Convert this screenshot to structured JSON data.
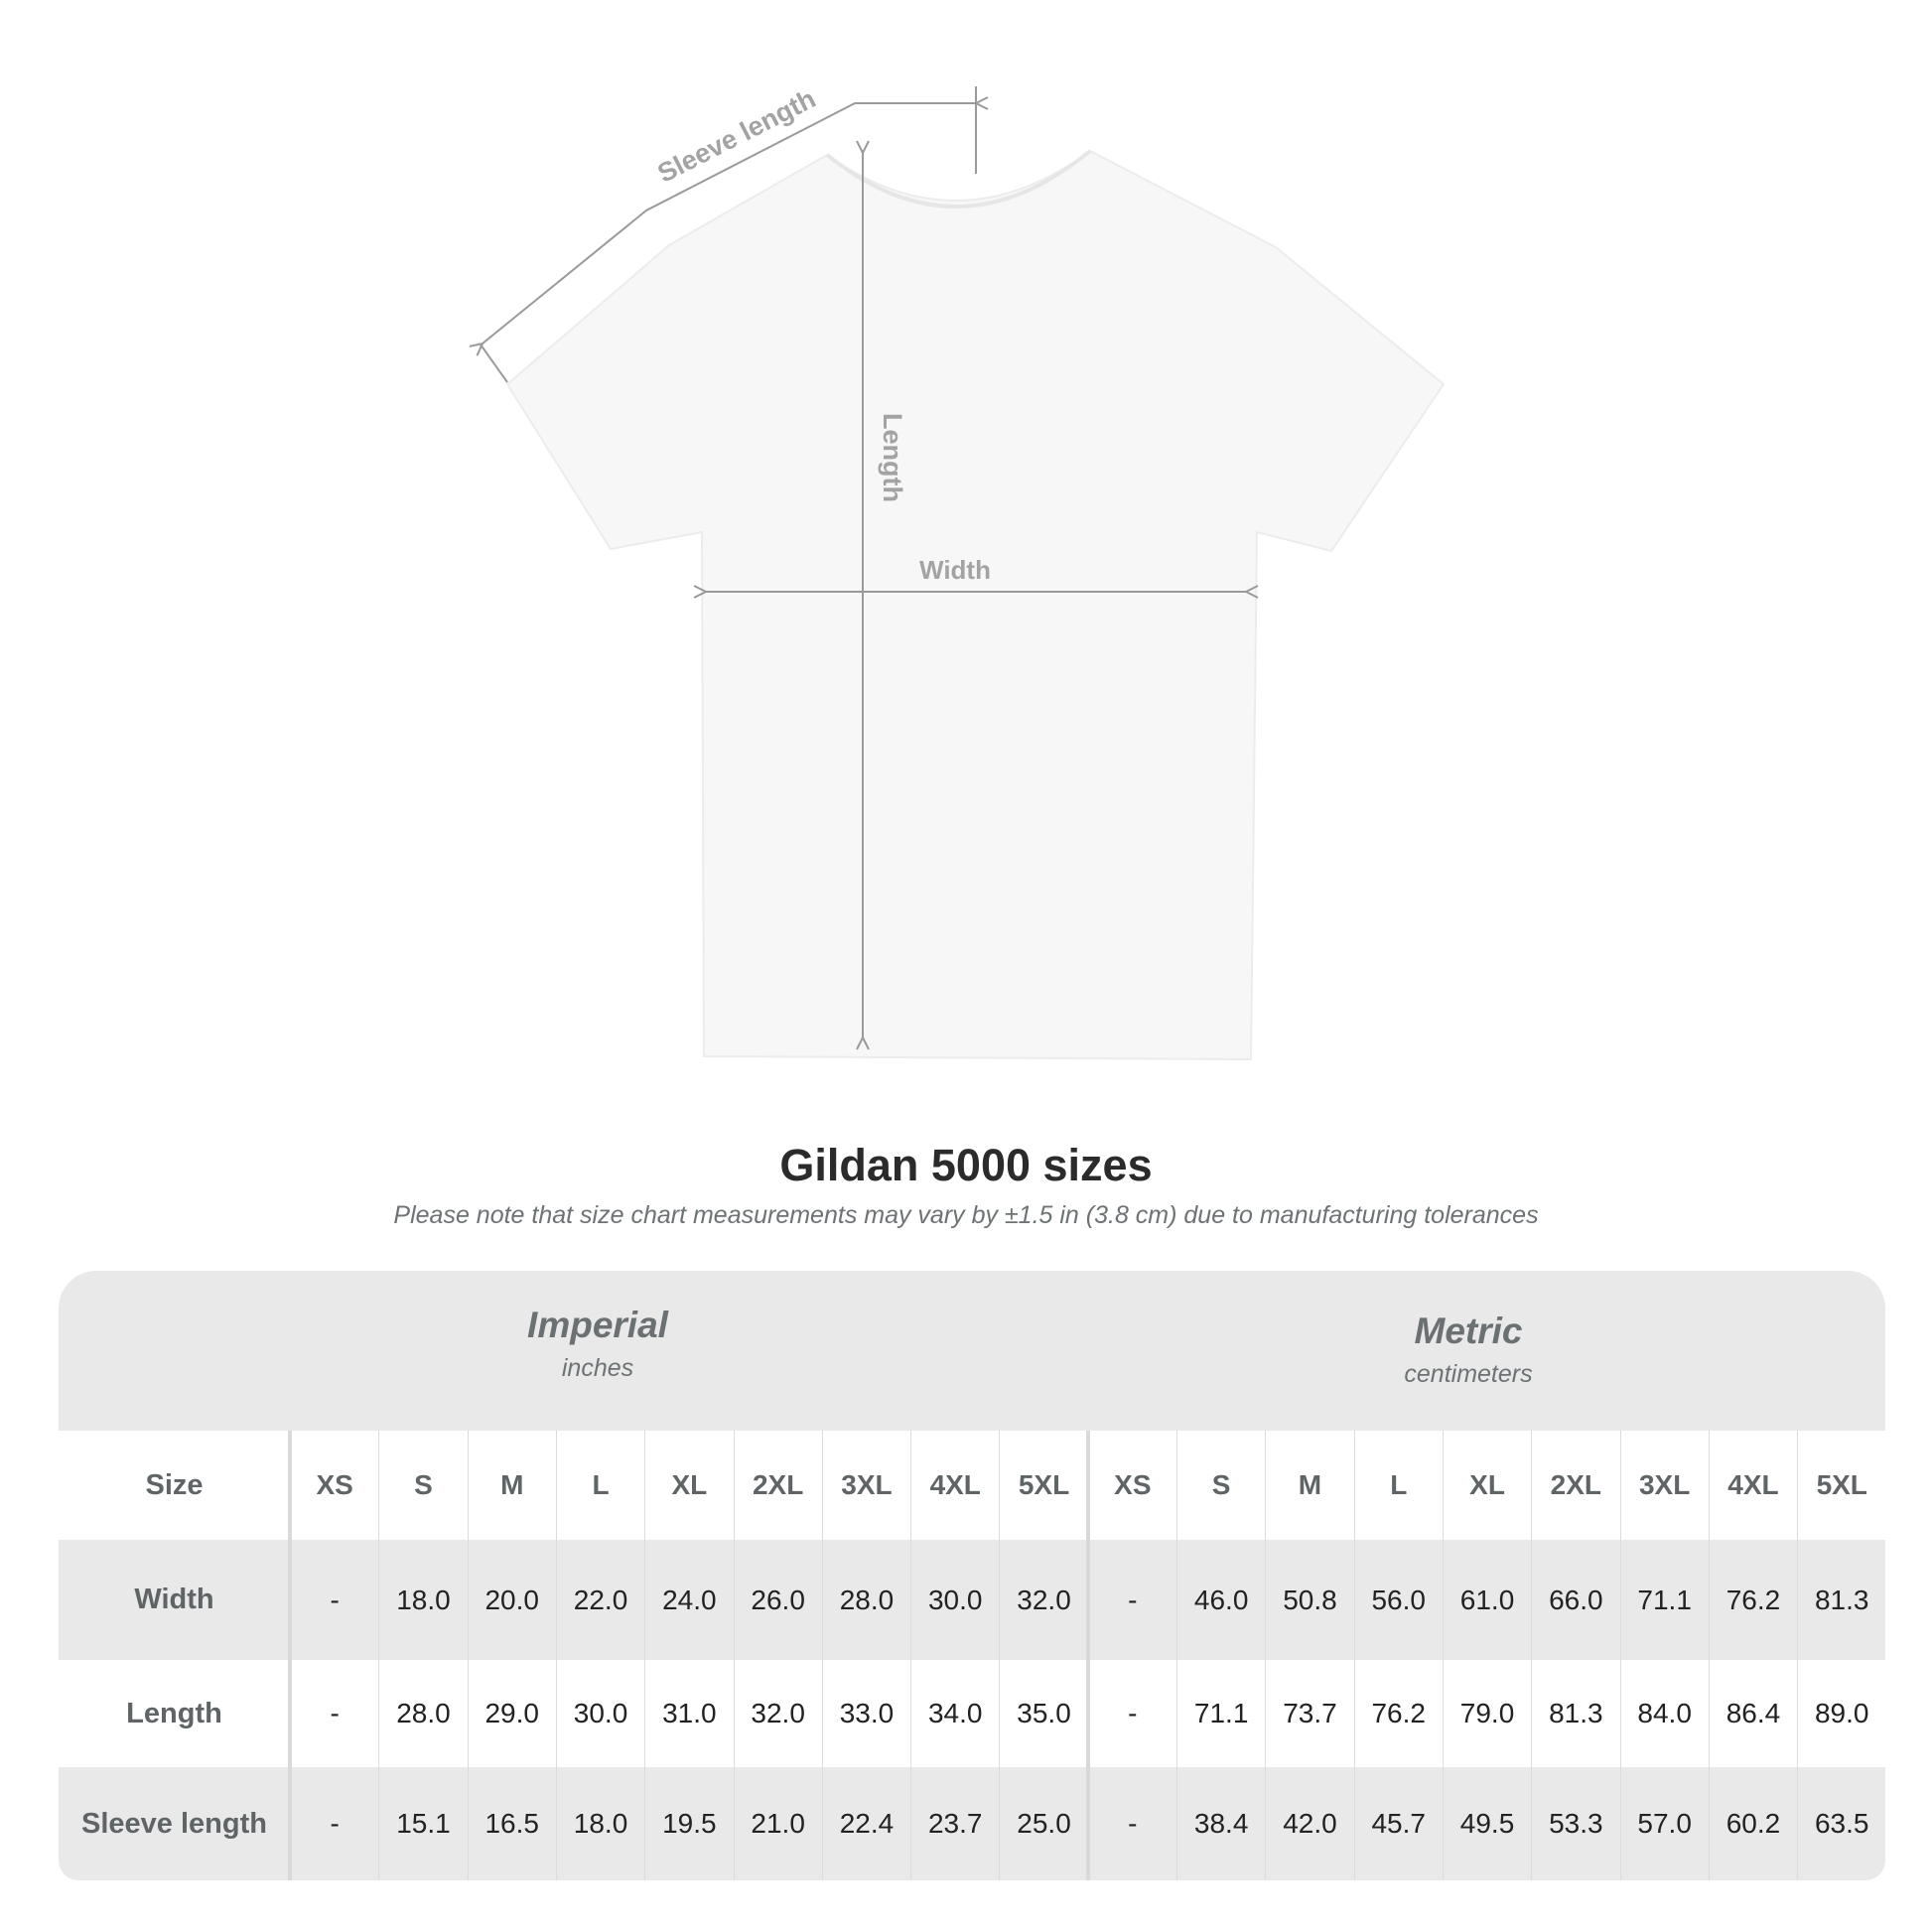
{
  "diagram": {
    "sleeve_label": "Sleeve length",
    "length_label": "Length",
    "width_label": "Width"
  },
  "title": "Gildan 5000 sizes",
  "subtitle": "Please note that size chart measurements may vary by ±1.5 in (3.8 cm) due to manufacturing tolerances",
  "table": {
    "imperial": {
      "name": "Imperial",
      "unit": "inches"
    },
    "metric": {
      "name": "Metric",
      "unit": "centimeters"
    },
    "size_label": "Size",
    "sizes": [
      "XS",
      "S",
      "M",
      "L",
      "XL",
      "2XL",
      "3XL",
      "4XL",
      "5XL"
    ],
    "rows": [
      {
        "label": "Width",
        "imperial": [
          "-",
          "18.0",
          "20.0",
          "22.0",
          "24.0",
          "26.0",
          "28.0",
          "30.0",
          "32.0"
        ],
        "metric": [
          "-",
          "46.0",
          "50.8",
          "56.0",
          "61.0",
          "66.0",
          "71.1",
          "76.2",
          "81.3"
        ]
      },
      {
        "label": "Length",
        "imperial": [
          "-",
          "28.0",
          "29.0",
          "30.0",
          "31.0",
          "32.0",
          "33.0",
          "34.0",
          "35.0"
        ],
        "metric": [
          "-",
          "71.1",
          "73.7",
          "76.2",
          "79.0",
          "81.3",
          "84.0",
          "86.4",
          "89.0"
        ]
      },
      {
        "label": "Sleeve length",
        "imperial": [
          "-",
          "15.1",
          "16.5",
          "18.0",
          "19.5",
          "21.0",
          "22.4",
          "23.7",
          "25.0"
        ],
        "metric": [
          "-",
          "38.4",
          "42.0",
          "45.7",
          "49.5",
          "53.3",
          "57.0",
          "60.2",
          "63.5"
        ]
      }
    ]
  },
  "colors": {
    "band": "#e9e9e9",
    "header_text": "#5f6566",
    "value_text": "#222222",
    "measure_line": "#9a9a9a"
  }
}
